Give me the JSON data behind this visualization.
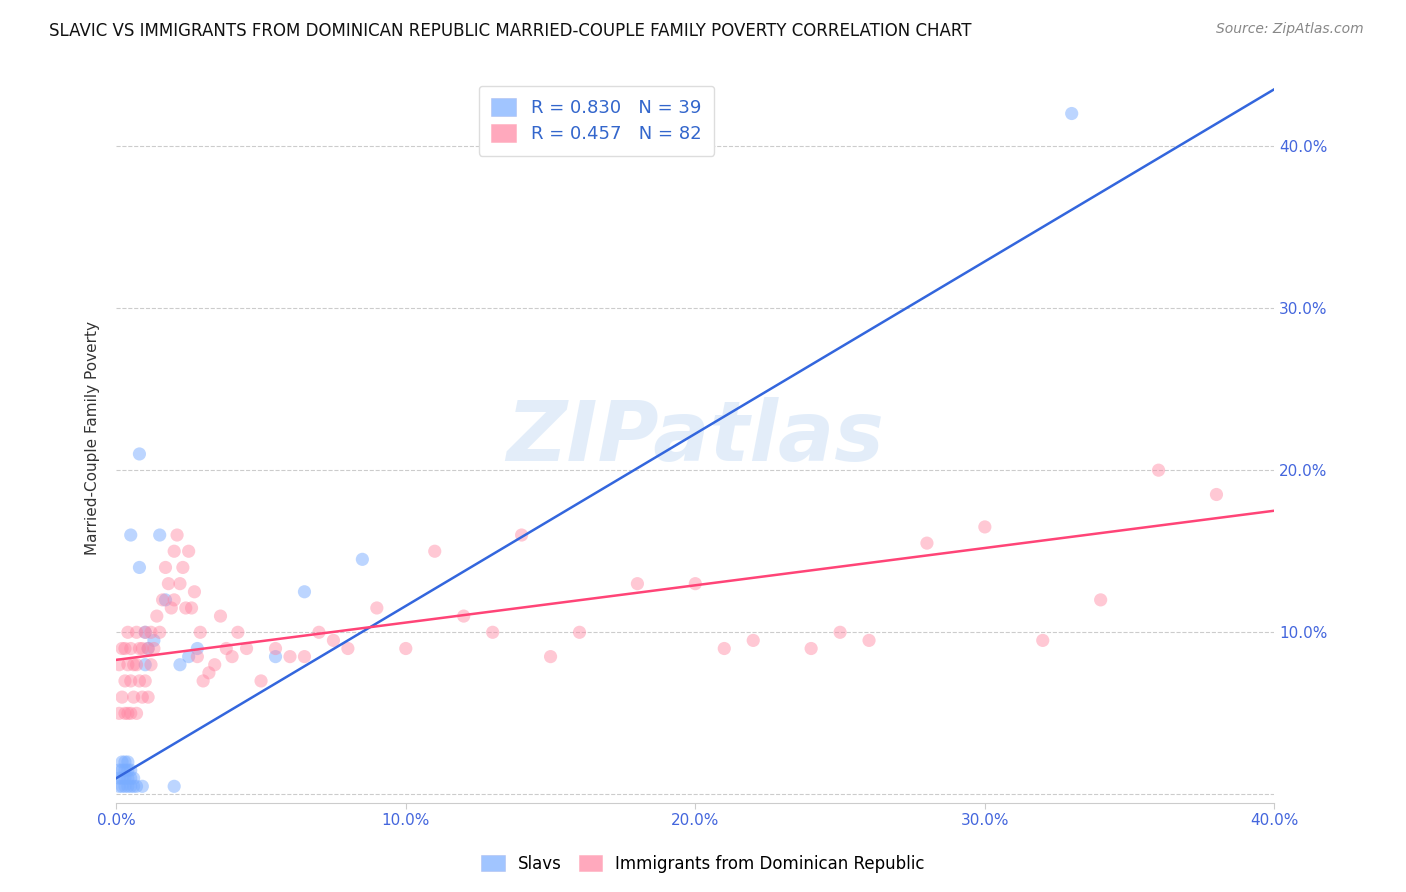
{
  "title": "SLAVIC VS IMMIGRANTS FROM DOMINICAN REPUBLIC MARRIED-COUPLE FAMILY POVERTY CORRELATION CHART",
  "source": "Source: ZipAtlas.com",
  "ylabel": "Married-Couple Family Poverty",
  "xlim": [
    0.0,
    0.4
  ],
  "ylim": [
    -0.005,
    0.445
  ],
  "slavs_color": "#7aadff",
  "dr_color": "#ff85a1",
  "slavs_line_color": "#3366dd",
  "dr_line_color": "#ff4477",
  "legend_label_slavs": "R = 0.830   N = 39",
  "legend_label_dr": "R = 0.457   N = 82",
  "legend_label_slavs_name": "Slavs",
  "legend_label_dr_name": "Immigrants from Dominican Republic",
  "watermark": "ZIPatlas",
  "slavs_line_x0": 0.0,
  "slavs_line_y0": 0.01,
  "slavs_line_x1": 0.4,
  "slavs_line_y1": 0.435,
  "dr_line_x0": 0.0,
  "dr_line_y0": 0.083,
  "dr_line_x1": 0.4,
  "dr_line_y1": 0.175,
  "slavs_x": [
    0.001,
    0.001,
    0.001,
    0.002,
    0.002,
    0.002,
    0.002,
    0.003,
    0.003,
    0.003,
    0.003,
    0.004,
    0.004,
    0.004,
    0.004,
    0.005,
    0.005,
    0.005,
    0.005,
    0.006,
    0.006,
    0.007,
    0.008,
    0.008,
    0.009,
    0.01,
    0.01,
    0.011,
    0.013,
    0.015,
    0.017,
    0.02,
    0.022,
    0.025,
    0.028,
    0.055,
    0.065,
    0.085,
    0.33
  ],
  "slavs_y": [
    0.005,
    0.01,
    0.015,
    0.005,
    0.01,
    0.015,
    0.02,
    0.005,
    0.01,
    0.015,
    0.02,
    0.005,
    0.01,
    0.015,
    0.02,
    0.005,
    0.01,
    0.015,
    0.16,
    0.005,
    0.01,
    0.005,
    0.14,
    0.21,
    0.005,
    0.08,
    0.1,
    0.09,
    0.095,
    0.16,
    0.12,
    0.005,
    0.08,
    0.085,
    0.09,
    0.085,
    0.125,
    0.145,
    0.42
  ],
  "dr_x": [
    0.001,
    0.001,
    0.002,
    0.002,
    0.003,
    0.003,
    0.003,
    0.004,
    0.004,
    0.004,
    0.005,
    0.005,
    0.005,
    0.006,
    0.006,
    0.007,
    0.007,
    0.007,
    0.008,
    0.008,
    0.009,
    0.009,
    0.01,
    0.01,
    0.011,
    0.011,
    0.012,
    0.012,
    0.013,
    0.014,
    0.015,
    0.016,
    0.017,
    0.018,
    0.019,
    0.02,
    0.02,
    0.021,
    0.022,
    0.023,
    0.024,
    0.025,
    0.026,
    0.027,
    0.028,
    0.029,
    0.03,
    0.032,
    0.034,
    0.036,
    0.038,
    0.04,
    0.042,
    0.045,
    0.05,
    0.055,
    0.06,
    0.065,
    0.07,
    0.075,
    0.08,
    0.09,
    0.1,
    0.11,
    0.12,
    0.13,
    0.14,
    0.15,
    0.16,
    0.18,
    0.2,
    0.21,
    0.22,
    0.24,
    0.25,
    0.26,
    0.28,
    0.3,
    0.32,
    0.34,
    0.36,
    0.38
  ],
  "dr_y": [
    0.05,
    0.08,
    0.06,
    0.09,
    0.05,
    0.07,
    0.09,
    0.05,
    0.08,
    0.1,
    0.05,
    0.07,
    0.09,
    0.06,
    0.08,
    0.05,
    0.08,
    0.1,
    0.07,
    0.09,
    0.06,
    0.09,
    0.07,
    0.1,
    0.06,
    0.09,
    0.08,
    0.1,
    0.09,
    0.11,
    0.1,
    0.12,
    0.14,
    0.13,
    0.115,
    0.12,
    0.15,
    0.16,
    0.13,
    0.14,
    0.115,
    0.15,
    0.115,
    0.125,
    0.085,
    0.1,
    0.07,
    0.075,
    0.08,
    0.11,
    0.09,
    0.085,
    0.1,
    0.09,
    0.07,
    0.09,
    0.085,
    0.085,
    0.1,
    0.095,
    0.09,
    0.115,
    0.09,
    0.15,
    0.11,
    0.1,
    0.16,
    0.085,
    0.1,
    0.13,
    0.13,
    0.09,
    0.095,
    0.09,
    0.1,
    0.095,
    0.155,
    0.165,
    0.095,
    0.12,
    0.2,
    0.185
  ]
}
